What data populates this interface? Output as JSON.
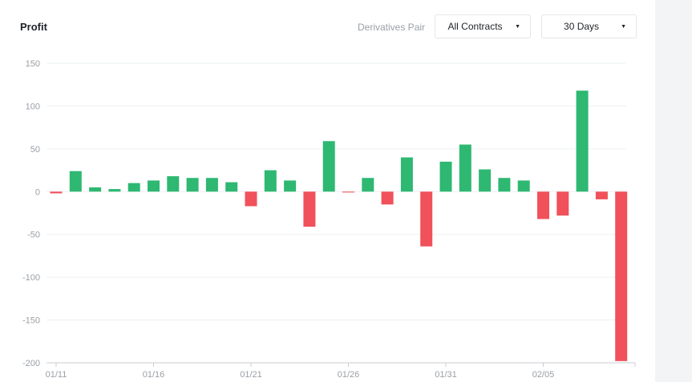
{
  "header": {
    "title": "Profit",
    "pair_label": "Derivatives Pair",
    "contracts_select": "All Contracts",
    "days_select": "30 Days"
  },
  "colors": {
    "positive": "#2eb872",
    "negative": "#f0515a",
    "grid": "#eef0f2",
    "axis": "#c9cdd2"
  },
  "icons": {
    "dropdown": "caret-down-icon"
  },
  "chart_data": {
    "type": "bar",
    "title": "Profit",
    "xlabel": "",
    "ylabel": "",
    "ylim": [
      -200,
      150
    ],
    "yticks": [
      150,
      100,
      50,
      0,
      -50,
      -100,
      -150,
      -200
    ],
    "grid": true,
    "categories": [
      "01/11",
      "01/12",
      "01/13",
      "01/14",
      "01/15",
      "01/16",
      "01/17",
      "01/18",
      "01/19",
      "01/20",
      "01/21",
      "01/22",
      "01/23",
      "01/24",
      "01/25",
      "01/26",
      "01/27",
      "01/28",
      "01/29",
      "01/30",
      "01/31",
      "02/01",
      "02/02",
      "02/03",
      "02/04",
      "02/05",
      "02/06",
      "02/07",
      "02/08",
      "02/09"
    ],
    "xtick_labels": [
      "01/11",
      "01/16",
      "01/21",
      "01/26",
      "01/31",
      "02/05"
    ],
    "xtick_indices": [
      0,
      5,
      10,
      15,
      20,
      25
    ],
    "values": [
      -2,
      24,
      5,
      3,
      10,
      13,
      18,
      16,
      16,
      11,
      -17,
      25,
      13,
      -41,
      59,
      -1,
      16,
      -15,
      40,
      -64,
      35,
      55,
      26,
      16,
      13,
      -32,
      -28,
      118,
      -9,
      -198
    ]
  }
}
